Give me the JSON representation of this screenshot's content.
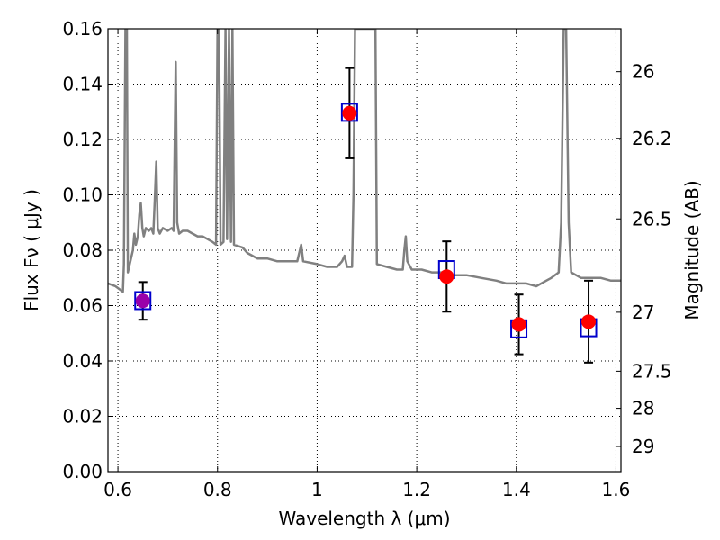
{
  "chart_data": {
    "type": "scatter",
    "xlabel": "Wavelength  λ (μm)",
    "ylabel": "Flux  Fν  ( μJy )",
    "y2label": "Magnitude (AB)",
    "xlim": [
      0.58,
      1.61
    ],
    "ylim": [
      0.0,
      0.16
    ],
    "grid": true,
    "x_ticks": [
      0.6,
      0.8,
      1.0,
      1.2,
      1.4,
      1.6
    ],
    "x_tick_labels": [
      "0.6",
      "0.8",
      "1",
      "1.2",
      "1.4",
      "1.6"
    ],
    "y_ticks": [
      0.0,
      0.02,
      0.04,
      0.06,
      0.08,
      0.1,
      0.12,
      0.14,
      0.16
    ],
    "y_tick_labels": [
      "0.00",
      "0.02",
      "0.04",
      "0.06",
      "0.08",
      "0.10",
      "0.12",
      "0.14",
      "0.16"
    ],
    "y2_ticks": [
      {
        "label": "26",
        "flux": 0.1445
      },
      {
        "label": "26.2",
        "flux": 0.1204
      },
      {
        "label": "26.5",
        "flux": 0.0913
      },
      {
        "label": "27",
        "flux": 0.0576
      },
      {
        "label": "27.5",
        "flux": 0.0363
      },
      {
        "label": "28",
        "flux": 0.0229
      },
      {
        "label": "29",
        "flux": 0.0091
      }
    ],
    "series": [
      {
        "role": "model-spectrum",
        "type": "line",
        "color": "#808080",
        "points": [
          [
            0.58,
            0.068
          ],
          [
            0.595,
            0.067
          ],
          [
            0.61,
            0.065
          ],
          [
            0.612,
            0.075
          ],
          [
            0.615,
            0.16
          ],
          [
            0.618,
            0.16
          ],
          [
            0.62,
            0.072
          ],
          [
            0.63,
            0.08
          ],
          [
            0.633,
            0.086
          ],
          [
            0.636,
            0.082
          ],
          [
            0.64,
            0.085
          ],
          [
            0.643,
            0.093
          ],
          [
            0.646,
            0.097
          ],
          [
            0.649,
            0.088
          ],
          [
            0.652,
            0.085
          ],
          [
            0.656,
            0.088
          ],
          [
            0.662,
            0.087
          ],
          [
            0.667,
            0.088
          ],
          [
            0.671,
            0.086
          ],
          [
            0.674,
            0.098
          ],
          [
            0.677,
            0.112
          ],
          [
            0.68,
            0.088
          ],
          [
            0.684,
            0.086
          ],
          [
            0.69,
            0.088
          ],
          [
            0.7,
            0.087
          ],
          [
            0.708,
            0.088
          ],
          [
            0.712,
            0.087
          ],
          [
            0.716,
            0.148
          ],
          [
            0.719,
            0.09
          ],
          [
            0.723,
            0.086
          ],
          [
            0.73,
            0.087
          ],
          [
            0.74,
            0.087
          ],
          [
            0.75,
            0.086
          ],
          [
            0.76,
            0.085
          ],
          [
            0.77,
            0.085
          ],
          [
            0.78,
            0.084
          ],
          [
            0.79,
            0.083
          ],
          [
            0.797,
            0.082
          ],
          [
            0.8,
            0.16
          ],
          [
            0.803,
            0.16
          ],
          [
            0.806,
            0.082
          ],
          [
            0.812,
            0.083
          ],
          [
            0.816,
            0.16
          ],
          [
            0.819,
            0.084
          ],
          [
            0.823,
            0.16
          ],
          [
            0.827,
            0.083
          ],
          [
            0.83,
            0.16
          ],
          [
            0.833,
            0.082
          ],
          [
            0.85,
            0.081
          ],
          [
            0.86,
            0.079
          ],
          [
            0.87,
            0.078
          ],
          [
            0.88,
            0.077
          ],
          [
            0.9,
            0.077
          ],
          [
            0.92,
            0.076
          ],
          [
            0.94,
            0.076
          ],
          [
            0.96,
            0.076
          ],
          [
            0.968,
            0.082
          ],
          [
            0.972,
            0.076
          ],
          [
            1.0,
            0.075
          ],
          [
            1.02,
            0.074
          ],
          [
            1.04,
            0.074
          ],
          [
            1.05,
            0.076
          ],
          [
            1.055,
            0.078
          ],
          [
            1.06,
            0.074
          ],
          [
            1.07,
            0.074
          ],
          [
            1.073,
            0.1
          ],
          [
            1.076,
            0.16
          ],
          [
            1.09,
            0.16
          ],
          [
            1.094,
            0.16
          ],
          [
            1.1,
            0.16
          ],
          [
            1.112,
            0.16
          ],
          [
            1.117,
            0.16
          ],
          [
            1.12,
            0.075
          ],
          [
            1.14,
            0.074
          ],
          [
            1.16,
            0.073
          ],
          [
            1.172,
            0.073
          ],
          [
            1.175,
            0.08
          ],
          [
            1.178,
            0.085
          ],
          [
            1.181,
            0.076
          ],
          [
            1.19,
            0.073
          ],
          [
            1.21,
            0.073
          ],
          [
            1.23,
            0.072
          ],
          [
            1.25,
            0.072
          ],
          [
            1.27,
            0.071
          ],
          [
            1.3,
            0.071
          ],
          [
            1.33,
            0.07
          ],
          [
            1.36,
            0.069
          ],
          [
            1.38,
            0.068
          ],
          [
            1.4,
            0.068
          ],
          [
            1.42,
            0.068
          ],
          [
            1.44,
            0.067
          ],
          [
            1.46,
            0.069
          ],
          [
            1.47,
            0.07
          ],
          [
            1.485,
            0.072
          ],
          [
            1.49,
            0.09
          ],
          [
            1.495,
            0.16
          ],
          [
            1.5,
            0.16
          ],
          [
            1.505,
            0.09
          ],
          [
            1.51,
            0.072
          ],
          [
            1.52,
            0.071
          ],
          [
            1.53,
            0.07
          ],
          [
            1.55,
            0.07
          ],
          [
            1.57,
            0.07
          ],
          [
            1.59,
            0.069
          ],
          [
            1.61,
            0.069
          ]
        ]
      },
      {
        "role": "observed-photometry",
        "type": "scatter",
        "marker": "filled-circle",
        "color": "#ff0000",
        "x": [
          1.065,
          1.26,
          1.405,
          1.545
        ],
        "y": [
          0.1295,
          0.0705,
          0.0532,
          0.0542
        ],
        "yerr": [
          0.0163,
          0.0127,
          0.0108,
          0.0148
        ]
      },
      {
        "role": "observed-photometry-blue-band",
        "type": "scatter",
        "marker": "filled-circle",
        "color": "#9900aa",
        "x": [
          0.65
        ],
        "y": [
          0.0617
        ],
        "yerr": [
          0.0068
        ]
      },
      {
        "role": "model-band-flux",
        "type": "scatter",
        "marker": "open-square",
        "color": "#0000cc",
        "x": [
          0.65,
          1.065,
          1.26,
          1.405,
          1.545
        ],
        "y": [
          0.0618,
          0.1298,
          0.073,
          0.0516,
          0.052
        ]
      }
    ]
  }
}
